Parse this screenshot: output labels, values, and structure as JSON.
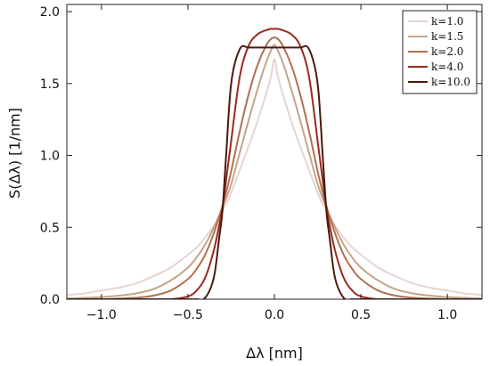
{
  "chart_data": {
    "type": "line",
    "xlabel": "Δλ [nm]",
    "ylabel": "S(Δλ) [1/nm]",
    "xlim": [
      -1.2,
      1.2
    ],
    "ylim": [
      0.0,
      2.05
    ],
    "xticks": [
      -1.0,
      -0.5,
      0.0,
      0.5,
      1.0
    ],
    "xtick_labels": [
      "−1.0",
      "−0.5",
      "0.0",
      "0.5",
      "1.0"
    ],
    "yticks": [
      0.0,
      0.5,
      1.0,
      1.5,
      2.0
    ],
    "ytick_labels": [
      "0.0",
      "0.5",
      "1.0",
      "1.5",
      "2.0"
    ],
    "grid": false,
    "legend": "top-right",
    "x": [
      -1.2,
      -1.1,
      -1.0,
      -0.9,
      -0.8,
      -0.7,
      -0.6,
      -0.5,
      -0.45,
      -0.4,
      -0.35,
      -0.32,
      -0.3,
      -0.28,
      -0.25,
      -0.2,
      -0.15,
      -0.1,
      -0.05,
      -0.02,
      0.0,
      0.02,
      0.05,
      0.1,
      0.15,
      0.2,
      0.25,
      0.28,
      0.3,
      0.32,
      0.35,
      0.4,
      0.45,
      0.5,
      0.6,
      0.7,
      0.8,
      0.9,
      1.0,
      1.1,
      1.2
    ],
    "series": [
      {
        "name": "k=1.0",
        "color": "#e6d4cf",
        "values": [
          0.03,
          0.04,
          0.06,
          0.08,
          0.11,
          0.16,
          0.22,
          0.31,
          0.36,
          0.43,
          0.51,
          0.57,
          0.62,
          0.66,
          0.74,
          0.9,
          1.06,
          1.23,
          1.42,
          1.55,
          1.67,
          1.55,
          1.42,
          1.23,
          1.06,
          0.9,
          0.74,
          0.66,
          0.62,
          0.57,
          0.51,
          0.43,
          0.36,
          0.31,
          0.22,
          0.16,
          0.11,
          0.08,
          0.06,
          0.04,
          0.03
        ]
      },
      {
        "name": "k=1.5",
        "color": "#c4a589",
        "values": [
          0.005,
          0.01,
          0.015,
          0.025,
          0.04,
          0.07,
          0.13,
          0.22,
          0.29,
          0.38,
          0.5,
          0.58,
          0.64,
          0.7,
          0.8,
          1.02,
          1.24,
          1.45,
          1.64,
          1.73,
          1.77,
          1.73,
          1.64,
          1.45,
          1.24,
          1.02,
          0.8,
          0.7,
          0.64,
          0.58,
          0.5,
          0.38,
          0.29,
          0.22,
          0.13,
          0.07,
          0.04,
          0.025,
          0.015,
          0.01,
          0.005
        ]
      },
      {
        "name": "k=2.0",
        "color": "#b0704f",
        "values": [
          0.0,
          0.0,
          0.0,
          0.005,
          0.01,
          0.025,
          0.06,
          0.14,
          0.21,
          0.31,
          0.46,
          0.57,
          0.65,
          0.74,
          0.89,
          1.17,
          1.42,
          1.62,
          1.76,
          1.81,
          1.82,
          1.81,
          1.76,
          1.62,
          1.42,
          1.17,
          0.89,
          0.74,
          0.65,
          0.57,
          0.46,
          0.31,
          0.21,
          0.14,
          0.06,
          0.025,
          0.01,
          0.005,
          0.0,
          0.0,
          0.0
        ]
      },
      {
        "name": "k=4.0",
        "color": "#9a2a1e",
        "values": [
          0.0,
          0.0,
          0.0,
          0.0,
          0.0,
          0.0,
          0.0,
          0.02,
          0.06,
          0.15,
          0.34,
          0.51,
          0.64,
          0.82,
          1.1,
          1.55,
          1.76,
          1.84,
          1.87,
          1.88,
          1.88,
          1.88,
          1.87,
          1.84,
          1.76,
          1.55,
          1.1,
          0.82,
          0.64,
          0.51,
          0.34,
          0.15,
          0.06,
          0.02,
          0.0,
          0.0,
          0.0,
          0.0,
          0.0,
          0.0,
          0.0
        ]
      },
      {
        "name": "k=10.0",
        "color": "#4a1a10",
        "values": [
          0.0,
          0.0,
          0.0,
          0.0,
          0.0,
          0.0,
          0.0,
          0.0,
          0.0,
          0.01,
          0.15,
          0.42,
          0.62,
          0.98,
          1.5,
          1.74,
          1.75,
          1.75,
          1.75,
          1.75,
          1.75,
          1.75,
          1.75,
          1.75,
          1.75,
          1.74,
          1.5,
          0.98,
          0.62,
          0.42,
          0.15,
          0.01,
          0.0,
          0.0,
          0.0,
          0.0,
          0.0,
          0.0,
          0.0,
          0.0,
          0.0
        ]
      }
    ]
  }
}
